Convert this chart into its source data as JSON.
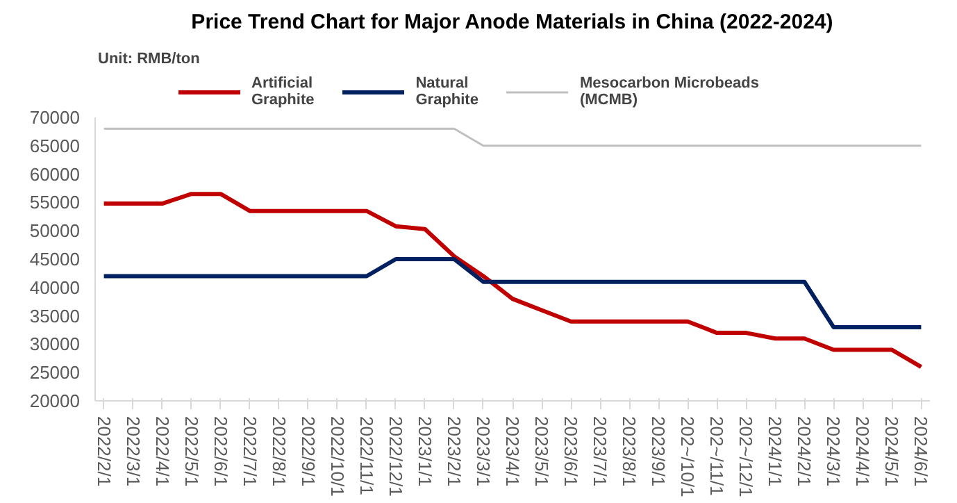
{
  "chart_data": {
    "type": "line",
    "title": "Price Trend Chart for Major Anode Materials in China (2022-2024)",
    "annotations": [
      "Unit: RMB/ton"
    ],
    "categories": [
      "2022/2/1",
      "2022/3/1",
      "2022/4/1",
      "2022/5/1",
      "2022/6/1",
      "2022/7/1",
      "2022/8/1",
      "2022/9/1",
      "2022/10/1",
      "2022/11/1",
      "2022/12/1",
      "2023/1/1",
      "2023/2/1",
      "2023/3/1",
      "2023/4/1",
      "2023/5/1",
      "2023/6/1",
      "2023/7/1",
      "2023/8/1",
      "2023/9/1",
      "202~/10/1",
      "202~/11/1",
      "202~/12/1",
      "2024/1/1",
      "2024/2/1",
      "2024/3/1",
      "2024/4/1",
      "2024/5/1",
      "2024/6/1"
    ],
    "series": [
      {
        "name": "Artificial\nGraphite",
        "color": "#c00000",
        "values": [
          54800,
          54800,
          54800,
          56500,
          56500,
          53500,
          53500,
          53500,
          53500,
          53500,
          50800,
          50300,
          45500,
          42000,
          38000,
          36000,
          34000,
          34000,
          34000,
          34000,
          34000,
          32000,
          32000,
          31000,
          31000,
          29000,
          29000,
          29000,
          26000
        ]
      },
      {
        "name": "Natural\nGraphite",
        "color": "#002060",
        "values": [
          42000,
          42000,
          42000,
          42000,
          42000,
          42000,
          42000,
          42000,
          42000,
          42000,
          45000,
          45000,
          45000,
          41000,
          41000,
          41000,
          41000,
          41000,
          41000,
          41000,
          41000,
          41000,
          41000,
          41000,
          41000,
          33000,
          33000,
          33000,
          33000
        ]
      },
      {
        "name": "Mesocarbon Microbeads\n(MCMB)",
        "color": "#bfbfbf",
        "values": [
          68000,
          68000,
          68000,
          68000,
          68000,
          68000,
          68000,
          68000,
          68000,
          68000,
          68000,
          68000,
          68000,
          65000,
          65000,
          65000,
          65000,
          65000,
          65000,
          65000,
          65000,
          65000,
          65000,
          65000,
          65000,
          65000,
          65000,
          65000,
          65000
        ]
      }
    ],
    "ylim": [
      20000,
      70000
    ],
    "yticks": [
      20000,
      25000,
      30000,
      35000,
      40000,
      45000,
      50000,
      55000,
      60000,
      65000,
      70000
    ],
    "grid": false,
    "legend": "top",
    "marker": "none",
    "line_style": "solid"
  }
}
